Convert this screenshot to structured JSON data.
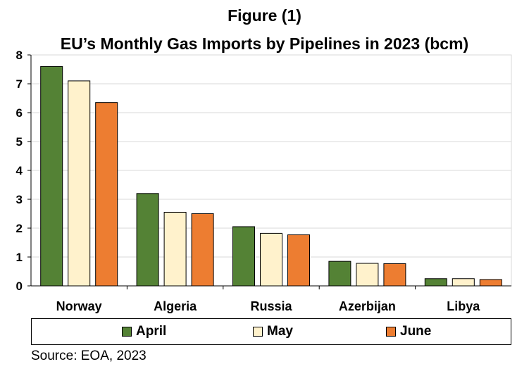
{
  "title": "Figure (1)",
  "subtitle": "EU’s Monthly Gas Imports by Pipelines in 2023  (bcm)",
  "source": "Source: EOA, 2023",
  "chart_data": {
    "type": "bar",
    "categories": [
      "Norway",
      "Algeria",
      "Russia",
      "Azerbijan",
      "Libya"
    ],
    "series": [
      {
        "name": "April",
        "color": "#548235",
        "values": [
          7.6,
          3.2,
          2.05,
          0.85,
          0.25
        ]
      },
      {
        "name": "May",
        "color": "#FFF2CC",
        "values": [
          7.1,
          2.55,
          1.82,
          0.78,
          0.25
        ]
      },
      {
        "name": "June",
        "color": "#ED7D31",
        "values": [
          6.35,
          2.5,
          1.77,
          0.77,
          0.22
        ]
      }
    ],
    "ylim": [
      0,
      8
    ],
    "yticks": [
      "0",
      "1",
      "2",
      "3",
      "4",
      "5",
      "6",
      "7",
      "8"
    ],
    "grid": true,
    "legend_position": "bottom"
  }
}
